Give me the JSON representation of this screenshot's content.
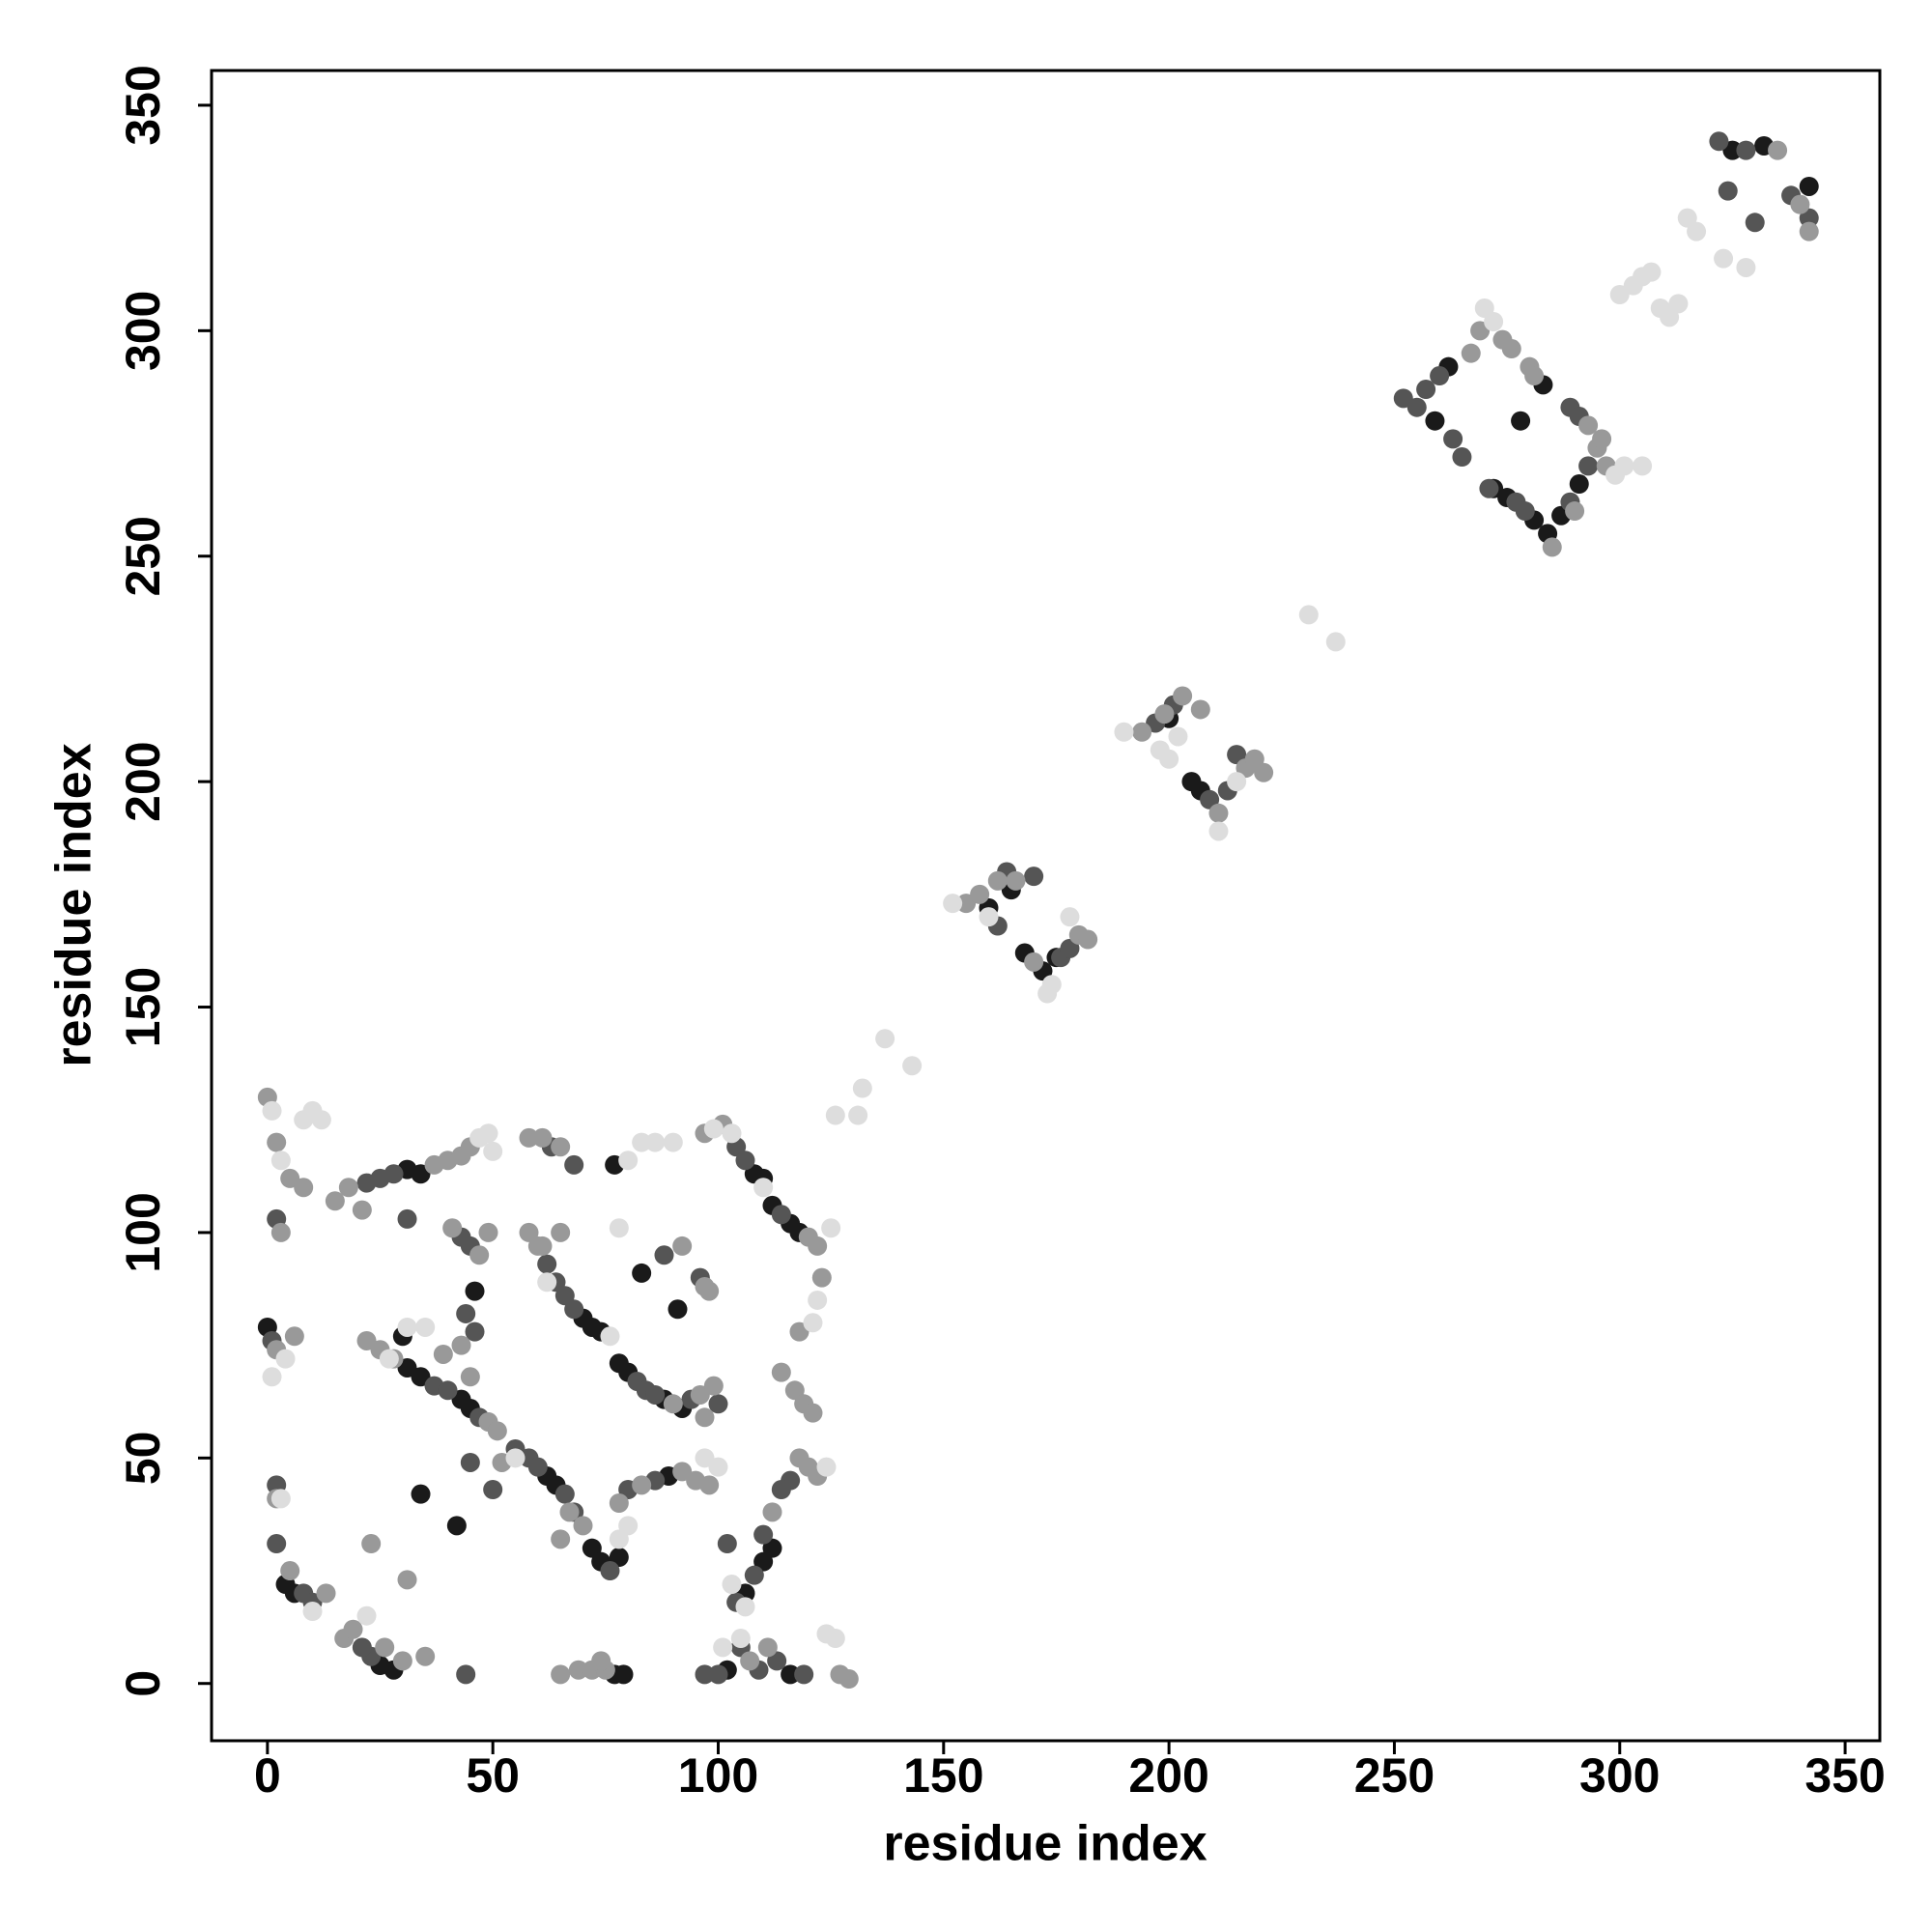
{
  "chart_data": {
    "type": "scatter",
    "xlabel": "residue index",
    "ylabel": "residue index",
    "xlim": [
      -12.4,
      357.7
    ],
    "ylim": [
      -12.7,
      357.7
    ],
    "xticks": [
      0,
      50,
      100,
      150,
      200,
      250,
      300,
      350
    ],
    "yticks": [
      0,
      50,
      100,
      150,
      200,
      250,
      300,
      350
    ],
    "grid": false,
    "series": [
      {
        "color": "#1a1a1a",
        "x": [
          325,
          332,
          342,
          259,
          262,
          272,
          275,
          281,
          284,
          287,
          291,
          278,
          283,
          205,
          207,
          200,
          165,
          168,
          175,
          172,
          160,
          0,
          4,
          6,
          25,
          28,
          31,
          34,
          31,
          34,
          43,
          45,
          30,
          34,
          42,
          62,
          64,
          72,
          74,
          78,
          46,
          70,
          72,
          74,
          78,
          80,
          88,
          92,
          91,
          83,
          108,
          110,
          112,
          116,
          118,
          112,
          110,
          106,
          89,
          77,
          79,
          102,
          116,
          77
        ],
        "values": [
          340,
          341,
          332,
          280,
          292,
          265,
          263,
          258,
          255,
          259,
          266,
          280,
          288,
          200,
          198,
          214,
          176,
          162,
          161,
          158,
          172,
          79,
          22,
          20,
          4,
          3,
          114,
          113,
          70,
          68,
          63,
          61,
          77,
          42,
          35,
          46,
          44,
          30,
          27,
          28,
          87,
          81,
          79,
          78,
          71,
          69,
          63,
          61,
          83,
          91,
          113,
          112,
          106,
          102,
          100,
          30,
          27,
          20,
          46,
          2,
          2,
          3,
          2,
          115
        ]
      },
      {
        "color": "#555555",
        "x": [
          322,
          328,
          338,
          342,
          324,
          330,
          252,
          255,
          257,
          260,
          263,
          265,
          271,
          277,
          279,
          289,
          293,
          289,
          291,
          197,
          201,
          209,
          213,
          215,
          162,
          164,
          170,
          176,
          178,
          2,
          1,
          2,
          8,
          10,
          23,
          21,
          22,
          25,
          28,
          37,
          40,
          47,
          31,
          45,
          50,
          55,
          58,
          60,
          66,
          68,
          76,
          43,
          45,
          44,
          46,
          62,
          64,
          66,
          68,
          82,
          84,
          86,
          94,
          63,
          68,
          88,
          104,
          106,
          114,
          116,
          114,
          110,
          108,
          104,
          102,
          86,
          80,
          44,
          97,
          100,
          105,
          109,
          113,
          100,
          96,
          2,
          119
        ],
        "values": [
          342,
          340,
          330,
          325,
          331,
          324,
          285,
          283,
          287,
          290,
          276,
          272,
          265,
          262,
          260,
          262,
          270,
          283,
          281,
          213,
          217,
          196,
          198,
          206,
          168,
          180,
          179,
          161,
          163,
          103,
          76,
          31,
          20,
          18,
          6,
          8,
          111,
          112,
          113,
          66,
          65,
          59,
          103,
          49,
          43,
          52,
          50,
          48,
          42,
          38,
          25,
          99,
          97,
          82,
          78,
          93,
          89,
          86,
          83,
          67,
          65,
          64,
          63,
          119,
          115,
          95,
          119,
          116,
          104,
          45,
          43,
          33,
          24,
          18,
          31,
          45,
          43,
          2,
          2,
          2,
          8,
          3,
          5,
          62,
          90,
          44,
          2
        ]
      },
      {
        "color": "#999999",
        "x": [
          335,
          340,
          342,
          267,
          269,
          274,
          276,
          280,
          281,
          285,
          295,
          297,
          293,
          296,
          290,
          194,
          199,
          203,
          207,
          211,
          217,
          219,
          221,
          155,
          158,
          162,
          166,
          170,
          180,
          182,
          0,
          2,
          5,
          8,
          3,
          2,
          6,
          2,
          5,
          13,
          17,
          19,
          30,
          26,
          15,
          18,
          37,
          40,
          43,
          45,
          21,
          22,
          25,
          28,
          49,
          51,
          23,
          31,
          52,
          65,
          70,
          67,
          41,
          47,
          49,
          43,
          39,
          45,
          58,
          60,
          61,
          65,
          90,
          96,
          99,
          97,
          58,
          61,
          65,
          92,
          97,
          101,
          120,
          122,
          123,
          118,
          114,
          117,
          119,
          121,
          118,
          120,
          122,
          112,
          98,
          95,
          92,
          83,
          78,
          65,
          69,
          72,
          75,
          74,
          107,
          111,
          127,
          129,
          35,
          98,
          97
        ],
        "values": [
          340,
          328,
          322,
          295,
          300,
          298,
          296,
          292,
          290,
          252,
          274,
          270,
          279,
          276,
          260,
          211,
          215,
          219,
          216,
          193,
          203,
          205,
          202,
          173,
          175,
          178,
          178,
          160,
          166,
          165,
          130,
          120,
          112,
          110,
          100,
          74,
          77,
          41,
          25,
          20,
          10,
          12,
          5,
          8,
          107,
          110,
          115,
          116,
          117,
          119,
          105,
          76,
          74,
          72,
          58,
          56,
          31,
          23,
          49,
          32,
          35,
          38,
          101,
          95,
          100,
          75,
          73,
          68,
          100,
          97,
          97,
          100,
          62,
          64,
          66,
          59,
          121,
          121,
          119,
          97,
          122,
          124,
          99,
          97,
          90,
          78,
          69,
          65,
          62,
          60,
          50,
          48,
          46,
          38,
          44,
          45,
          47,
          44,
          40,
          2,
          3,
          3,
          3,
          5,
          5,
          8,
          2,
          1,
          6,
          87,
          88
        ]
      },
      {
        "color": "#dddddd",
        "x": [
          323,
          328,
          300,
          303,
          305,
          307,
          309,
          311,
          313,
          315,
          317,
          270,
          272,
          299,
          301,
          305,
          231,
          237,
          190,
          198,
          200,
          202,
          215,
          211,
          152,
          160,
          174,
          173,
          178,
          132,
          137,
          143,
          126,
          131,
          1,
          3,
          8,
          10,
          12,
          4,
          1,
          3,
          22,
          10,
          47,
          49,
          50,
          27,
          55,
          35,
          31,
          78,
          80,
          62,
          76,
          80,
          83,
          86,
          90,
          78,
          99,
          103,
          125,
          122,
          121,
          124,
          103,
          106,
          100,
          97,
          101,
          105,
          124,
          126,
          110
        ],
        "values": [
          316,
          314,
          308,
          310,
          312,
          313,
          305,
          303,
          306,
          325,
          322,
          305,
          302,
          268,
          270,
          270,
          237,
          231,
          211,
          207,
          205,
          210,
          200,
          189,
          173,
          170,
          155,
          153,
          170,
          132,
          143,
          137,
          126,
          126,
          127,
          116,
          125,
          127,
          125,
          72,
          68,
          41,
          15,
          16,
          121,
          122,
          118,
          72,
          50,
          79,
          79,
          32,
          35,
          89,
          77,
          116,
          120,
          120,
          120,
          101,
          123,
          122,
          101,
          85,
          80,
          48,
          22,
          17,
          48,
          50,
          8,
          10,
          11,
          10,
          110
        ]
      }
    ]
  }
}
